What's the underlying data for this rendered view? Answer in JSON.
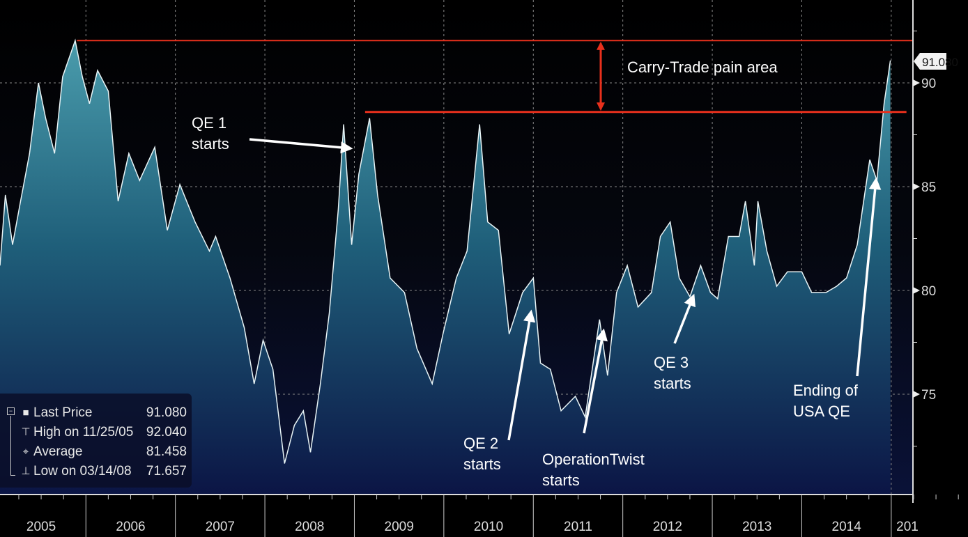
{
  "chart_data": {
    "type": "area",
    "title": "",
    "xlabel": "",
    "ylabel": "",
    "xlim": [
      2005.04,
      2015.25
    ],
    "ylim": [
      70.4,
      94.0
    ],
    "grid": true,
    "y_ticks": [
      75,
      80,
      85,
      90
    ],
    "x_tick_labels": [
      "2005",
      "2006",
      "2007",
      "2008",
      "2009",
      "2010",
      "2011",
      "2012",
      "2013",
      "2014",
      "201"
    ],
    "series": [
      {
        "name": "Last Price",
        "x": [
          2005.04,
          2005.1,
          2005.18,
          2005.27,
          2005.37,
          2005.47,
          2005.55,
          2005.65,
          2005.74,
          2005.88,
          2005.96,
          2006.04,
          2006.13,
          2006.25,
          2006.36,
          2006.48,
          2006.6,
          2006.77,
          2006.91,
          2007.05,
          2007.22,
          2007.38,
          2007.45,
          2007.61,
          2007.77,
          2007.88,
          2007.98,
          2008.09,
          2008.22,
          2008.33,
          2008.43,
          2008.51,
          2008.62,
          2008.72,
          2008.82,
          2008.88,
          2008.97,
          2009.05,
          2009.17,
          2009.26,
          2009.4,
          2009.56,
          2009.7,
          2009.87,
          2009.99,
          2010.14,
          2010.26,
          2010.4,
          2010.49,
          2010.61,
          2010.73,
          2010.88,
          2011.0,
          2011.08,
          2011.19,
          2011.31,
          2011.47,
          2011.58,
          2011.74,
          2011.83,
          2011.93,
          2012.05,
          2012.17,
          2012.32,
          2012.42,
          2012.53,
          2012.63,
          2012.75,
          2012.87,
          2012.98,
          2013.06,
          2013.18,
          2013.3,
          2013.37,
          2013.47,
          2013.51,
          2013.61,
          2013.72,
          2013.84,
          2014.0,
          2014.11,
          2014.27,
          2014.39,
          2014.5,
          2014.62,
          2014.76,
          2014.84,
          2014.92,
          2014.99
        ],
        "values": [
          81.2,
          84.6,
          82.2,
          84.3,
          86.6,
          90.0,
          88.3,
          86.6,
          90.3,
          92.04,
          90.3,
          89.0,
          90.6,
          89.6,
          84.3,
          86.6,
          85.3,
          86.9,
          82.9,
          85.1,
          83.3,
          81.9,
          82.6,
          80.6,
          78.2,
          75.5,
          77.6,
          76.2,
          71.66,
          73.5,
          74.2,
          72.2,
          75.5,
          78.9,
          83.9,
          88.0,
          82.2,
          85.6,
          88.3,
          84.6,
          80.6,
          79.9,
          77.2,
          75.5,
          77.9,
          80.6,
          81.9,
          88.0,
          83.3,
          82.9,
          77.9,
          79.9,
          80.6,
          76.5,
          76.2,
          74.2,
          74.9,
          73.9,
          78.6,
          75.9,
          79.9,
          81.2,
          79.2,
          79.9,
          82.6,
          83.3,
          80.6,
          79.7,
          81.2,
          79.9,
          79.6,
          82.6,
          82.6,
          84.3,
          81.2,
          84.3,
          81.9,
          80.2,
          80.9,
          80.9,
          79.9,
          79.9,
          80.2,
          80.6,
          82.2,
          86.3,
          85.3,
          89.0,
          91.08
        ]
      }
    ],
    "reference_lines": [
      {
        "value": 92.04,
        "from": 2005.9,
        "to": 2015.25
      },
      {
        "value": 88.6,
        "from": 2009.12,
        "to": 2015.17
      }
    ],
    "last_price_tag": "91.080",
    "annotations": {
      "carry_trade": "Carry-Trade pain area",
      "qe1": [
        "QE 1",
        "starts"
      ],
      "qe2": [
        "QE 2",
        "starts"
      ],
      "twist": [
        "OperationTwist",
        "starts"
      ],
      "qe3": [
        "QE 3",
        "starts"
      ],
      "ending": [
        "Ending of",
        "USA QE"
      ]
    },
    "legend": {
      "placement": "bottom-left",
      "rows": [
        {
          "label": "Last Price",
          "value": "91.080"
        },
        {
          "label": "High on 11/25/05",
          "value": "92.040"
        },
        {
          "label": "Average",
          "value": "81.458"
        },
        {
          "label": "Low on 03/14/08",
          "value": "71.657"
        }
      ]
    },
    "colors": {
      "line": "#e8f4f6",
      "fill_top": "#3f93a3",
      "fill_bottom": "#0b1545",
      "ref_line": "#e8301c"
    }
  }
}
